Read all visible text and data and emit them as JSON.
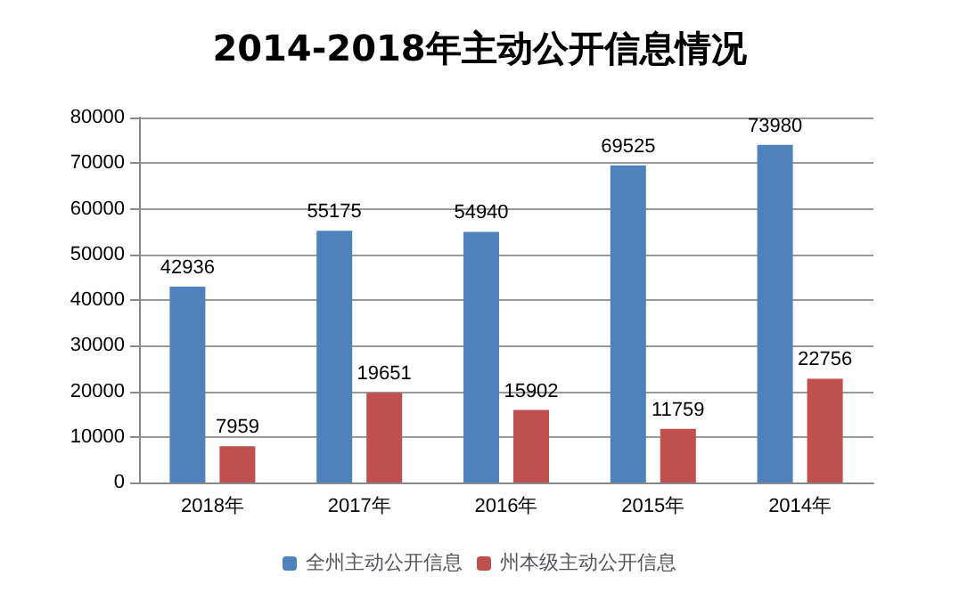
{
  "chart_data": {
    "type": "bar",
    "title": "2014-2018年主动公开信息情况",
    "categories": [
      "2018年",
      "2017年",
      "2016年",
      "2015年",
      "2014年"
    ],
    "series": [
      {
        "name": "全州主动公开信息",
        "color": "#4f81bd",
        "values": [
          42936,
          55175,
          54940,
          69525,
          73980
        ]
      },
      {
        "name": "州本级主动公开信息",
        "color": "#c0504d",
        "values": [
          7959,
          19651,
          15902,
          11759,
          22756
        ]
      }
    ],
    "ylim": [
      0,
      80000
    ],
    "yticks": [
      0,
      10000,
      20000,
      30000,
      40000,
      50000,
      60000,
      70000,
      80000
    ],
    "grid": "y",
    "legend": "bottom",
    "data_labels": true
  }
}
